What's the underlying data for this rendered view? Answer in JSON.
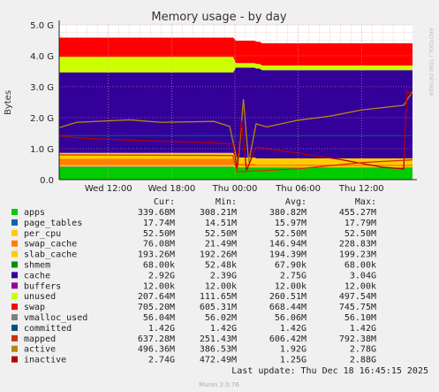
{
  "chart_data": {
    "type": "area",
    "title": "Memory usage - by day",
    "ylabel": "Bytes",
    "watermark": "RRDTOOL / TOBI OETIKER",
    "ylim_bytes": [
      0,
      5000000000
    ],
    "y_ticks": [
      {
        "label": "0.0",
        "value": 0
      },
      {
        "label": "1.0 G",
        "value": 1000000000
      },
      {
        "label": "2.0 G",
        "value": 2000000000
      },
      {
        "label": "3.0 G",
        "value": 3000000000
      },
      {
        "label": "4.0 G",
        "value": 4000000000
      },
      {
        "label": "5.0 G",
        "value": 5000000000
      }
    ],
    "x_range_hours": [
      7.3333,
      40.8333
    ],
    "x_ticks": [
      {
        "label": "Wed 12:00",
        "hour": 12
      },
      {
        "label": "Wed 18:00",
        "hour": 18
      },
      {
        "label": "Thu 00:00",
        "hour": 24
      },
      {
        "label": "Thu 06:00",
        "hour": 30
      },
      {
        "label": "Thu 12:00",
        "hour": 36
      }
    ],
    "grid": true,
    "legend_columns": [
      "Cur:",
      "Min:",
      "Avg:",
      "Max:"
    ],
    "series": [
      {
        "name": "apps",
        "color": "#00cc00",
        "cur": "339.68M",
        "min": "308.21M",
        "avg": "380.82M",
        "max": "455.27M"
      },
      {
        "name": "page_tables",
        "color": "#0066b3",
        "cur": "17.74M",
        "min": "14.51M",
        "avg": "15.97M",
        "max": "17.79M"
      },
      {
        "name": "per_cpu",
        "color": "#ffcc00",
        "cur": "52.50M",
        "min": "52.50M",
        "avg": "52.50M",
        "max": "52.50M"
      },
      {
        "name": "swap_cache",
        "color": "#ff8000",
        "cur": "76.08M",
        "min": "21.49M",
        "avg": "146.94M",
        "max": "228.83M"
      },
      {
        "name": "slab_cache",
        "color": "#ffcc00",
        "cur": "193.26M",
        "min": "192.26M",
        "avg": "194.39M",
        "max": "199.23M"
      },
      {
        "name": "shmem",
        "color": "#008f00",
        "cur": "68.00k",
        "min": "52.48k",
        "avg": "67.90k",
        "max": "68.00k"
      },
      {
        "name": "cache",
        "color": "#330099",
        "cur": "2.92G",
        "min": "2.39G",
        "avg": "2.75G",
        "max": "3.04G"
      },
      {
        "name": "buffers",
        "color": "#990099",
        "cur": "12.00k",
        "min": "12.00k",
        "avg": "12.00k",
        "max": "12.00k"
      },
      {
        "name": "unused",
        "color": "#ccff00",
        "cur": "207.64M",
        "min": "111.65M",
        "avg": "260.51M",
        "max": "497.54M"
      },
      {
        "name": "swap",
        "color": "#ff0000",
        "cur": "705.20M",
        "min": "605.31M",
        "avg": "668.44M",
        "max": "745.75M"
      },
      {
        "name": "vmalloc_used",
        "color": "#808080",
        "cur": "56.04M",
        "min": "56.02M",
        "avg": "56.06M",
        "max": "56.10M"
      },
      {
        "name": "committed",
        "color": "#005080",
        "cur": "1.42G",
        "min": "1.42G",
        "avg": "1.42G",
        "max": "1.42G"
      },
      {
        "name": "mapped",
        "color": "#cc3300",
        "cur": "637.28M",
        "min": "251.43M",
        "avg": "606.42M",
        "max": "792.38M"
      },
      {
        "name": "active",
        "color": "#b8860b",
        "cur": "496.36M",
        "min": "386.53M",
        "avg": "1.92G",
        "max": "2.78G"
      },
      {
        "name": "inactive",
        "color": "#b30000",
        "cur": "2.74G",
        "min": "472.49M",
        "avg": "1.25G",
        "max": "2.88G"
      }
    ],
    "last_update": "Last update: Thu Dec 18 16:45:15 2025",
    "footer": "Munin 2.0.76"
  }
}
